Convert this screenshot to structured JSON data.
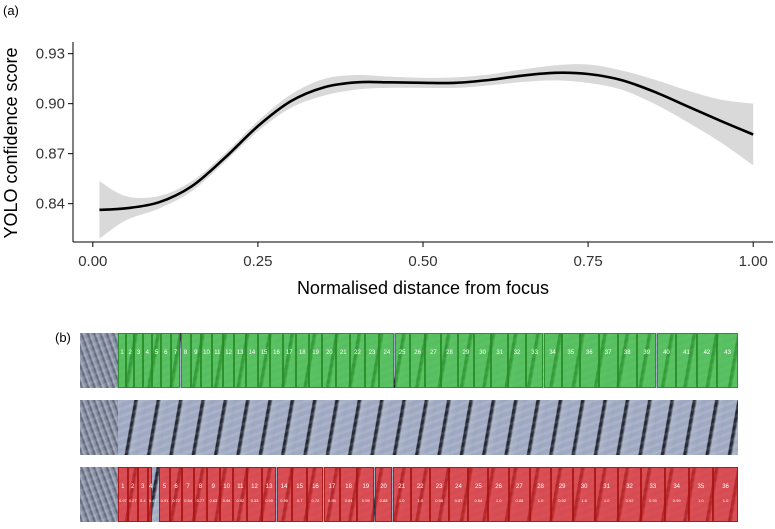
{
  "panel_a_label": "(a)",
  "panel_b_label": "(b)",
  "chart_data": {
    "type": "line",
    "xlabel": "Normalised distance from focus",
    "ylabel": "YOLO confidence score",
    "xlim": [
      -0.03,
      1.03
    ],
    "ylim": [
      0.817,
      0.937
    ],
    "x_ticks": [
      0.0,
      0.25,
      0.5,
      0.75,
      1.0
    ],
    "x_tick_labels": [
      "0.00",
      "0.25",
      "0.50",
      "0.75",
      "1.00"
    ],
    "y_ticks": [
      0.84,
      0.87,
      0.9,
      0.93
    ],
    "y_tick_labels": [
      "0.84",
      "0.87",
      "0.90",
      "0.93"
    ],
    "grid": false,
    "line_color": "#000000",
    "band_color": "#d9d9d9",
    "series": [
      {
        "x": [
          0.01,
          0.05,
          0.1,
          0.15,
          0.2,
          0.25,
          0.3,
          0.35,
          0.4,
          0.45,
          0.5,
          0.55,
          0.6,
          0.65,
          0.7,
          0.75,
          0.8,
          0.85,
          0.9,
          0.95,
          1.0
        ],
        "y": [
          0.8363,
          0.8372,
          0.8408,
          0.8505,
          0.8675,
          0.8865,
          0.9015,
          0.9098,
          0.9128,
          0.9128,
          0.9125,
          0.9125,
          0.9142,
          0.9168,
          0.9185,
          0.9178,
          0.9142,
          0.9072,
          0.8985,
          0.8898,
          0.8815
        ],
        "lower": [
          0.819,
          0.83,
          0.837,
          0.8475,
          0.865,
          0.8835,
          0.8975,
          0.9048,
          0.9085,
          0.9095,
          0.9095,
          0.9095,
          0.911,
          0.913,
          0.914,
          0.9125,
          0.9085,
          0.9,
          0.889,
          0.877,
          0.863
        ],
        "upper": [
          0.8535,
          0.8445,
          0.8445,
          0.8535,
          0.87,
          0.8895,
          0.9055,
          0.9148,
          0.9172,
          0.9162,
          0.9155,
          0.9158,
          0.9175,
          0.9205,
          0.923,
          0.9235,
          0.92,
          0.9145,
          0.908,
          0.9025,
          0.9
        ]
      }
    ]
  },
  "strips": [
    {
      "name": "green",
      "color": "green",
      "boxes": [
        {
          "n": "1",
          "c": ""
        },
        {
          "n": "2",
          "c": ""
        },
        {
          "n": "3",
          "c": ""
        },
        {
          "n": "4",
          "c": ""
        },
        {
          "n": "5",
          "c": ""
        },
        {
          "n": "6",
          "c": ""
        },
        {
          "n": "7",
          "c": ""
        },
        {
          "n": "8",
          "c": ""
        },
        {
          "n": "9",
          "c": ""
        },
        {
          "n": "10",
          "c": ""
        },
        {
          "n": "11",
          "c": ""
        },
        {
          "n": "12",
          "c": ""
        },
        {
          "n": "13",
          "c": ""
        },
        {
          "n": "14",
          "c": ""
        },
        {
          "n": "15",
          "c": ""
        },
        {
          "n": "16",
          "c": ""
        },
        {
          "n": "17",
          "c": ""
        },
        {
          "n": "18",
          "c": ""
        },
        {
          "n": "19",
          "c": ""
        },
        {
          "n": "20",
          "c": ""
        },
        {
          "n": "21",
          "c": ""
        },
        {
          "n": "22",
          "c": ""
        },
        {
          "n": "23",
          "c": ""
        },
        {
          "n": "24",
          "c": ""
        },
        {
          "n": "25",
          "c": ""
        },
        {
          "n": "26",
          "c": ""
        },
        {
          "n": "27",
          "c": ""
        },
        {
          "n": "28",
          "c": ""
        },
        {
          "n": "29",
          "c": ""
        },
        {
          "n": "30",
          "c": ""
        },
        {
          "n": "31",
          "c": ""
        },
        {
          "n": "32",
          "c": ""
        },
        {
          "n": "33",
          "c": ""
        },
        {
          "n": "34",
          "c": ""
        },
        {
          "n": "35",
          "c": ""
        },
        {
          "n": "36",
          "c": ""
        },
        {
          "n": "37",
          "c": ""
        },
        {
          "n": "38",
          "c": ""
        },
        {
          "n": "39",
          "c": ""
        },
        {
          "n": "40",
          "c": ""
        },
        {
          "n": "41",
          "c": ""
        },
        {
          "n": "42",
          "c": ""
        },
        {
          "n": "43",
          "c": ""
        }
      ]
    },
    {
      "name": "plain",
      "color": "none",
      "boxes": []
    },
    {
      "name": "red",
      "color": "red",
      "boxes": [
        {
          "n": "1",
          "c": "0.97"
        },
        {
          "n": "2",
          "c": "0.27"
        },
        {
          "n": "3",
          "c": "0.4"
        },
        {
          "n": "4",
          "c": "0.47"
        },
        {
          "n": "5",
          "c": "0.91"
        },
        {
          "n": "6",
          "c": "0.72"
        },
        {
          "n": "7",
          "c": "0.54"
        },
        {
          "n": "8",
          "c": "0.77"
        },
        {
          "n": "9",
          "c": "0.63"
        },
        {
          "n": "10",
          "c": "0.94"
        },
        {
          "n": "11",
          "c": "0.92"
        },
        {
          "n": "12",
          "c": "0.33"
        },
        {
          "n": "13",
          "c": "0.98"
        },
        {
          "n": "14",
          "c": "0.95"
        },
        {
          "n": "15",
          "c": "0.7"
        },
        {
          "n": "16",
          "c": "0.72"
        },
        {
          "n": "17",
          "c": "0.55"
        },
        {
          "n": "18",
          "c": "0.84"
        },
        {
          "n": "19",
          "c": "0.99"
        },
        {
          "n": "20",
          "c": "0.88"
        },
        {
          "n": "21",
          "c": "1.0"
        },
        {
          "n": "22",
          "c": "1.0"
        },
        {
          "n": "23",
          "c": "0.98"
        },
        {
          "n": "24",
          "c": "0.87"
        },
        {
          "n": "25",
          "c": "0.94"
        },
        {
          "n": "26",
          "c": "1.0"
        },
        {
          "n": "27",
          "c": "0.88"
        },
        {
          "n": "28",
          "c": "1.0"
        },
        {
          "n": "29",
          "c": "0.92"
        },
        {
          "n": "30",
          "c": "1.0"
        },
        {
          "n": "31",
          "c": "1.0"
        },
        {
          "n": "32",
          "c": "0.92"
        },
        {
          "n": "33",
          "c": "0.93"
        },
        {
          "n": "34",
          "c": "0.99"
        },
        {
          "n": "35",
          "c": "1.0"
        },
        {
          "n": "36",
          "c": "1.0"
        }
      ]
    }
  ]
}
